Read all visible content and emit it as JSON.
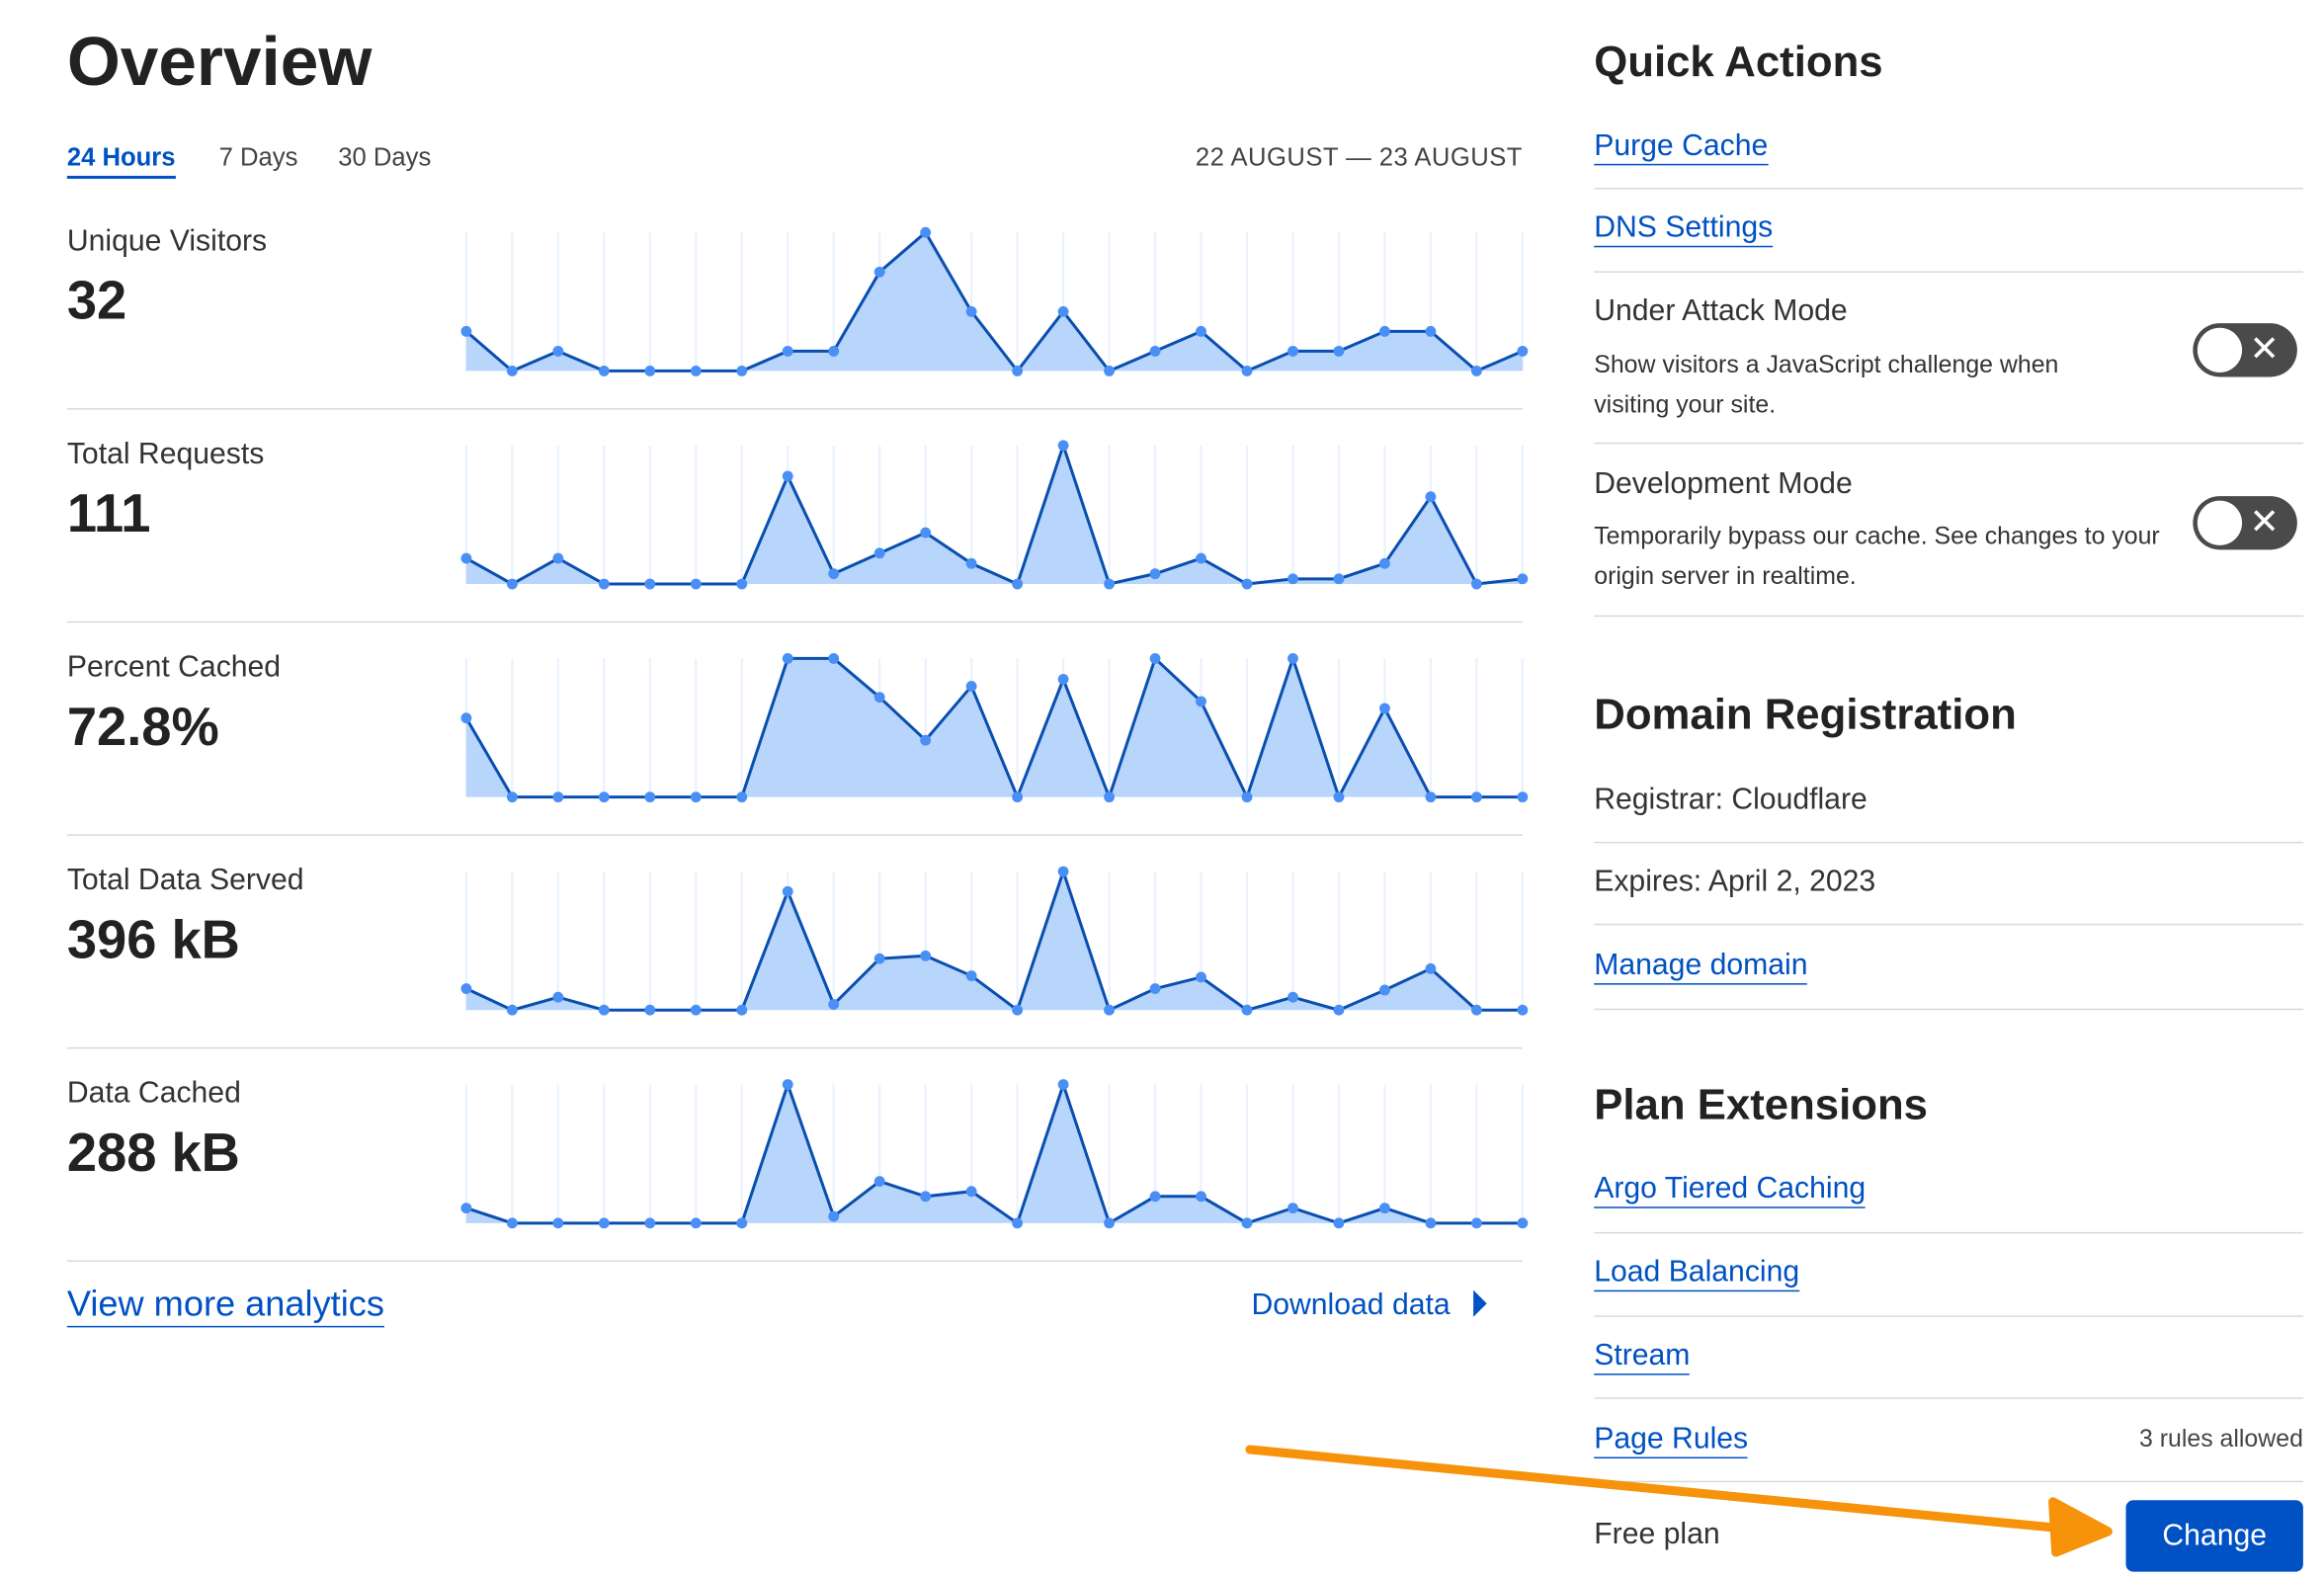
{
  "overview": {
    "title": "Overview",
    "tabs": [
      {
        "label": "24 Hours",
        "active": true
      },
      {
        "label": "7 Days",
        "active": false
      },
      {
        "label": "30 Days",
        "active": false
      }
    ],
    "date_range": "22 AUGUST — 23 AUGUST",
    "metrics": [
      {
        "label": "Unique Visitors",
        "value": "32"
      },
      {
        "label": "Total Requests",
        "value": "111"
      },
      {
        "label": "Percent Cached",
        "value": "72.8%"
      },
      {
        "label": "Total Data Served",
        "value": "396 kB"
      },
      {
        "label": "Data Cached",
        "value": "288 kB"
      }
    ],
    "view_more": "View more analytics",
    "download": "Download data"
  },
  "chart_data": [
    {
      "type": "area",
      "series": [
        {
          "values": [
            2,
            0,
            1,
            0,
            0,
            0,
            0,
            1,
            1,
            5,
            7,
            3,
            0,
            3,
            0,
            1,
            2,
            0,
            1,
            1,
            2,
            2,
            0,
            1
          ]
        }
      ]
    },
    {
      "type": "area",
      "series": [
        {
          "values": [
            5,
            0,
            5,
            0,
            0,
            0,
            0,
            21,
            2,
            6,
            10,
            4,
            0,
            27,
            0,
            2,
            5,
            0,
            1,
            1,
            4,
            17,
            0,
            1
          ]
        }
      ]
    },
    {
      "type": "area",
      "series": [
        {
          "values": [
            57,
            0,
            0,
            0,
            0,
            0,
            0,
            100,
            100,
            72,
            41,
            80,
            0,
            85,
            0,
            100,
            69,
            0,
            100,
            0,
            64,
            0,
            0,
            0
          ]
        }
      ]
    },
    {
      "type": "area",
      "series": [
        {
          "values": [
            15,
            0,
            9,
            0,
            0,
            0,
            0,
            83,
            4,
            36,
            38,
            24,
            0,
            97,
            0,
            15,
            23,
            0,
            9,
            0,
            14,
            29,
            0,
            0
          ]
        }
      ]
    },
    {
      "type": "area",
      "series": [
        {
          "values": [
            9,
            0,
            0,
            0,
            0,
            0,
            0,
            83,
            4,
            25,
            16,
            19,
            0,
            83,
            0,
            16,
            16,
            0,
            9,
            0,
            9,
            0,
            0,
            0
          ]
        }
      ]
    }
  ],
  "quick_actions": {
    "title": "Quick Actions",
    "purge_cache": "Purge Cache",
    "dns_settings": "DNS Settings",
    "under_attack": {
      "label": "Under Attack Mode",
      "desc": "Show visitors a JavaScript challenge when visiting your site.",
      "enabled": false
    },
    "dev_mode": {
      "label": "Development Mode",
      "desc": "Temporarily bypass our cache. See changes to your origin server in realtime.",
      "enabled": false
    }
  },
  "domain_registration": {
    "title": "Domain Registration",
    "registrar": "Registrar: Cloudflare",
    "expires": "Expires: April 2, 2023",
    "manage": "Manage domain"
  },
  "plan_extensions": {
    "title": "Plan Extensions",
    "items": [
      "Argo Tiered Caching",
      "Load Balancing",
      "Stream",
      "Page Rules"
    ],
    "page_rules_note": "3 rules allowed",
    "plan": "Free plan",
    "change": "Change"
  },
  "colors": {
    "accent": "#0051c3",
    "area_fill": "#b8d5fb",
    "line": "#0a4fb0",
    "point": "#4a8ff5",
    "annotation_arrow": "#f6930b"
  }
}
